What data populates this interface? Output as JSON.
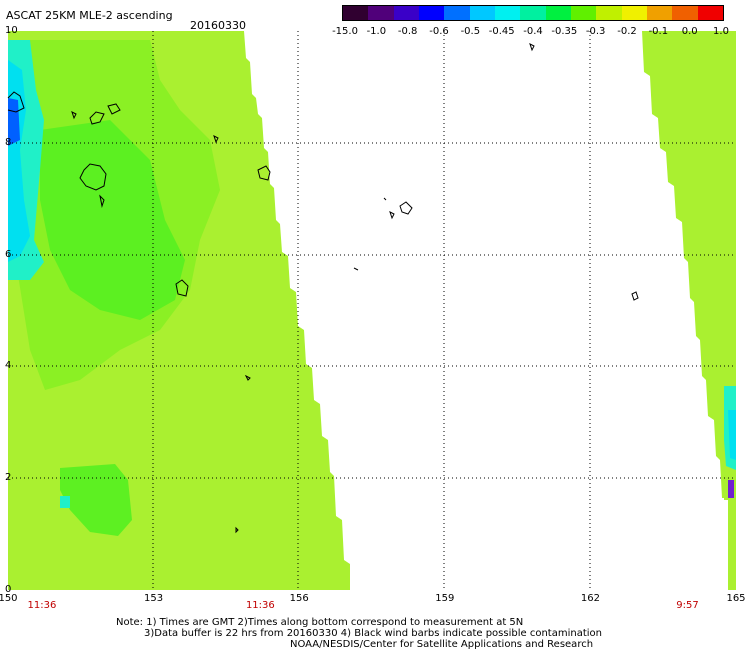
{
  "header": {
    "title": "ASCAT 25KM MLE-2 ascending",
    "date": "20160330"
  },
  "colorbar": {
    "labels": [
      "-15.0",
      "-1.0",
      "-0.8",
      "-0.6",
      "-0.5",
      "-0.45",
      "-0.4",
      "-0.35",
      "-0.3",
      "-0.2",
      "-0.1",
      "0.0",
      "1.0"
    ],
    "colors": [
      "#300030",
      "#50007a",
      "#3a00c8",
      "#0000ff",
      "#0070ff",
      "#00c8ff",
      "#00f0f0",
      "#00f0a0",
      "#00f040",
      "#60f000",
      "#c0f000",
      "#f0f000",
      "#f0a000",
      "#f06000",
      "#f00000"
    ]
  },
  "axes": {
    "x_ticks": [
      "150",
      "153",
      "156",
      "159",
      "162",
      "165"
    ],
    "y_ticks": [
      "10",
      "8",
      "6",
      "4",
      "2",
      "0"
    ],
    "xlim": [
      150,
      165
    ],
    "ylim": [
      0,
      10
    ]
  },
  "pass_times": [
    {
      "time": "11:36",
      "lon": 150.7
    },
    {
      "time": "11:36",
      "lon": 155.2
    },
    {
      "time": "9:57",
      "lon": 164.0
    }
  ],
  "notes": [
    "Note: 1) Times are GMT 2)Times along bottom correspond to measurement at 5N",
    "3)Data buffer is 22 hrs from 20160330 4) Black wind barbs indicate possible contamination",
    "NOAA/NESDIS/Center for Satellite Applications and Research"
  ],
  "colors": {
    "swath_main": "#aaf030",
    "swath_bright": "#80f020",
    "swath_deep": "#50f020",
    "swath_cyan": "#20f0c8",
    "swath_cyan2": "#00e0f0",
    "swath_blue": "#0060ff",
    "swath_purple": "#7020d0"
  }
}
